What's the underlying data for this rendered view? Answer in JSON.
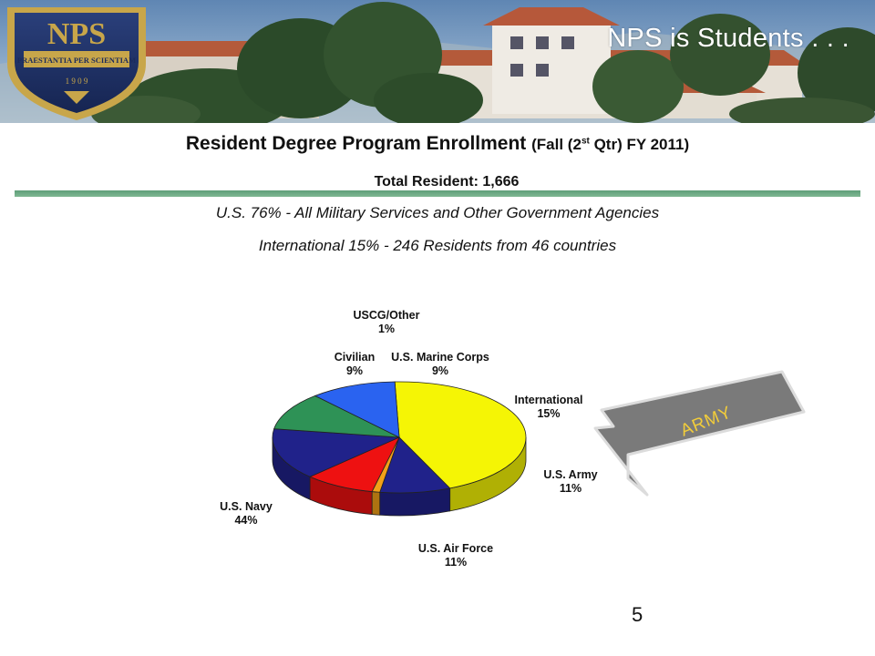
{
  "slide": {
    "corner_title": "NPS is Students . . .",
    "title_main": "Resident Degree Program Enrollment",
    "title_paren_a": "(Fall (2",
    "title_sup": "st",
    "title_paren_b": " Qtr) FY 2011)",
    "total_line": "Total Resident: 1,666",
    "line_us": "U.S. 76% - All Military Services and Other Government Agencies",
    "line_intl": "International 15% - 246 Residents from 46 countries",
    "page_number": "5"
  },
  "logo": {
    "letters": "NPS",
    "motto": "PRAESTANTIA PER SCIENTIAM",
    "year": "1 9 0 9"
  },
  "arrow": {
    "label": "ARMY"
  },
  "chart_data": {
    "type": "pie",
    "title": "",
    "slices": [
      {
        "label": "U.S. Navy",
        "value": 44,
        "display": "44%",
        "color": "#f5f505"
      },
      {
        "label": "Civilian",
        "value": 9,
        "display": "9%",
        "color": "#20228a"
      },
      {
        "label": "USCG/Other",
        "value": 1,
        "display": "1%",
        "color": "#f2a018"
      },
      {
        "label": "U.S. Marine Corps",
        "value": 9,
        "display": "9%",
        "color": "#ee1111"
      },
      {
        "label": "International",
        "value": 15,
        "display": "15%",
        "color": "#20228a"
      },
      {
        "label": "U.S. Army",
        "value": 11,
        "display": "11%",
        "color": "#2e9256"
      },
      {
        "label": "U.S. Air Force",
        "value": 11,
        "display": "11%",
        "color": "#2a63f0"
      }
    ]
  }
}
